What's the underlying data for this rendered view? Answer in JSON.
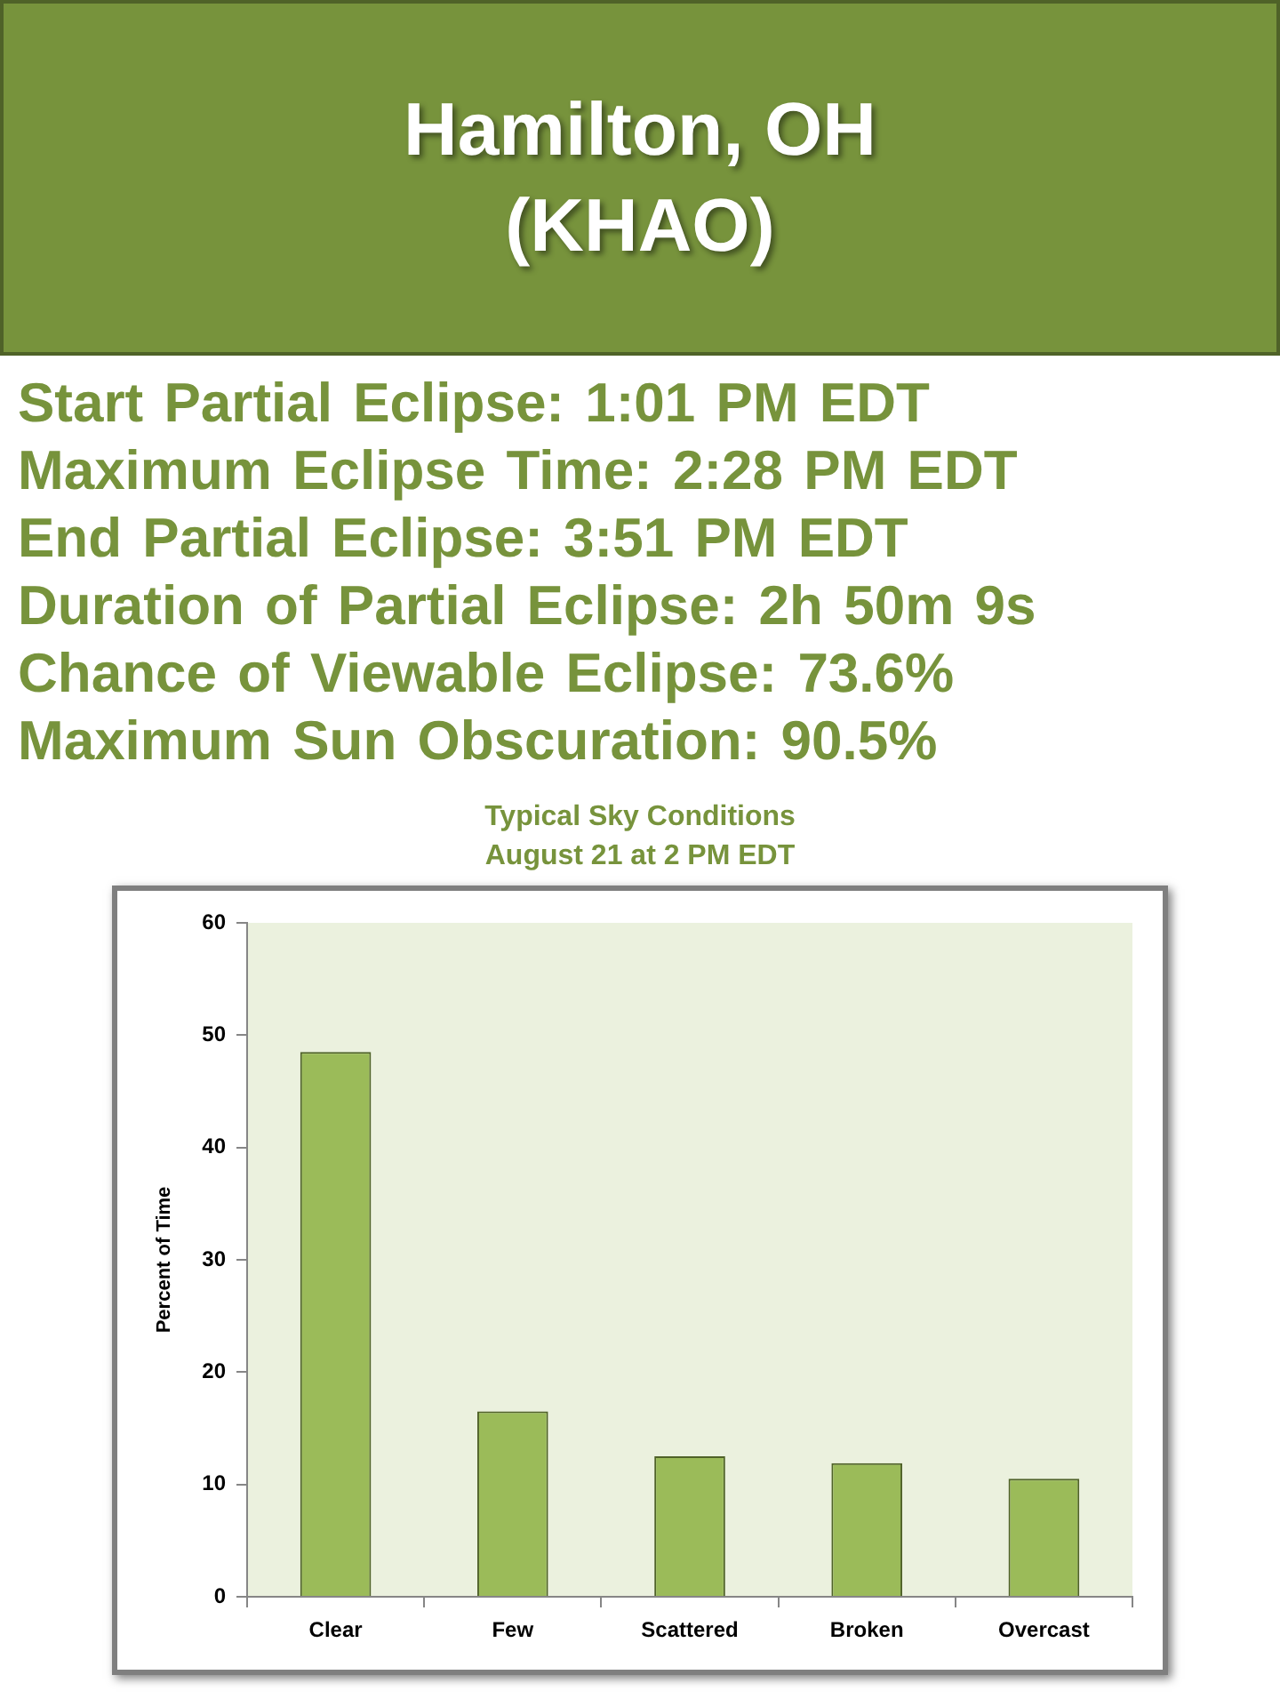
{
  "chart_data": {
    "type": "bar",
    "title": "Typical Sky Conditions",
    "subtitle": "August 21 at 2 PM EDT",
    "ylabel": "Percent of Time",
    "categories": [
      "Clear",
      "Few",
      "Scattered",
      "Broken",
      "Overcast"
    ],
    "values": [
      48.5,
      16.5,
      12.5,
      11.9,
      10.5
    ],
    "color": "#9bbb59",
    "ylim": [
      0,
      60
    ],
    "yticks": [
      0,
      10,
      20,
      30,
      40,
      50,
      60
    ],
    "annotations": [
      "Hamilton, OH (KHAO)",
      "Start Partial Eclipse: 1:01 PM EDT",
      "Maximum Eclipse Time: 2:28 PM EDT",
      "End Partial Eclipse: 3:51 PM EDT",
      "Duration of Partial Eclipse: 2h 50m 9s",
      "Chance of Viewable Eclipse: 73.6%",
      "Maximum Sun Obscuration: 90.5%"
    ]
  }
}
